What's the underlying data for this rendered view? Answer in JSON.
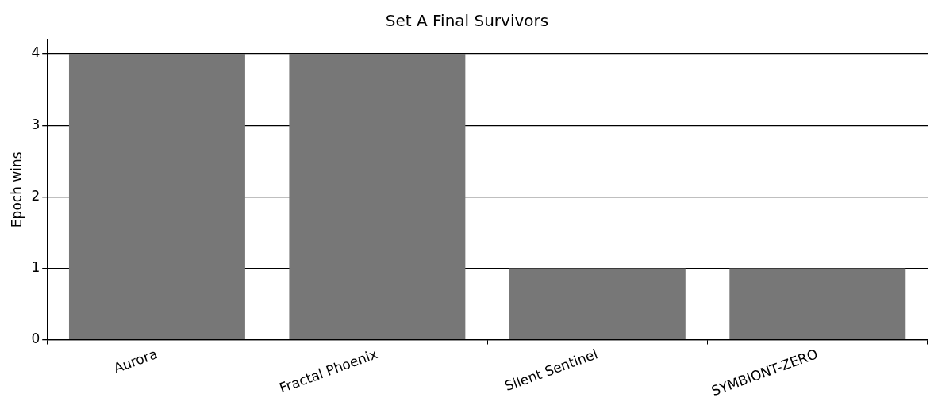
{
  "chart_data": {
    "type": "bar",
    "title": "Set A Final Survivors",
    "ylabel": "Epoch wins",
    "categories": [
      "Aurora",
      "Fractal Phoenix",
      "Silent Sentinel",
      "SYMBIONT-ZERO"
    ],
    "values": [
      4,
      4,
      1,
      1
    ],
    "color": "#777777",
    "ylim": [
      0,
      4.2
    ],
    "yticks": [
      0,
      1,
      2,
      3,
      4
    ],
    "grid": "y",
    "legend": false
  }
}
